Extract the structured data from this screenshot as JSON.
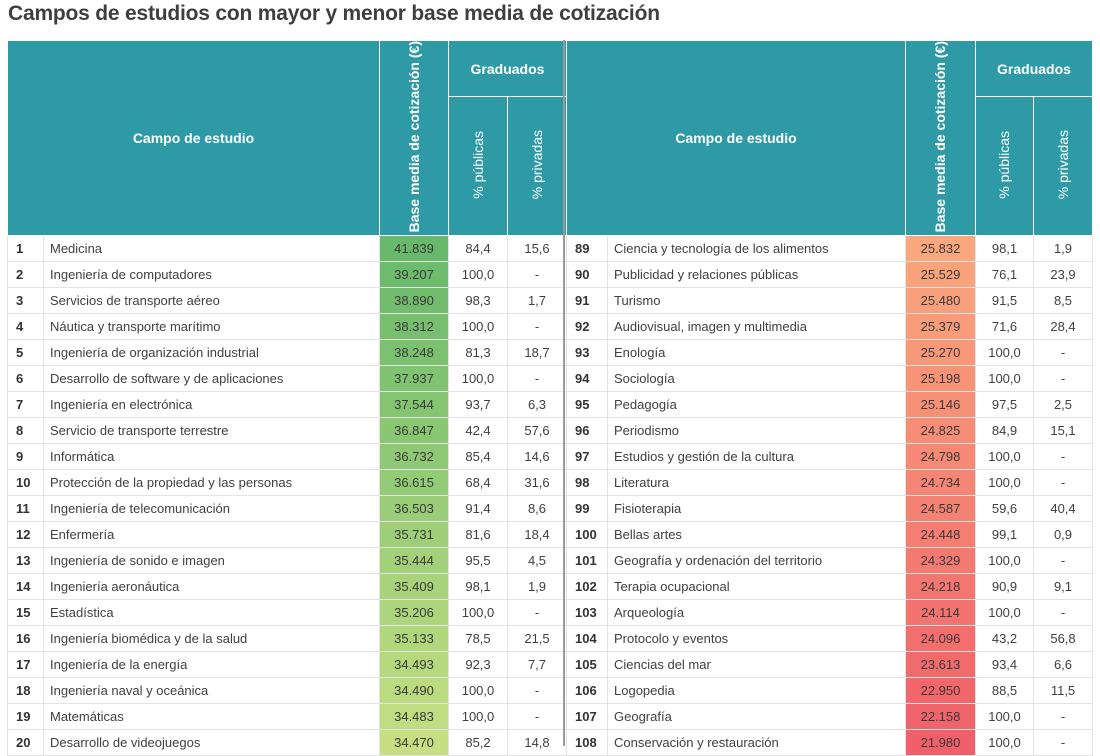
{
  "title": "Campos de estudios con mayor y menor base media de cotización",
  "headers": {
    "campo": "Campo de estudio",
    "base": "Base media de cotización (€)",
    "graduados": "Graduados",
    "publicas": "% públicas",
    "privadas": "% privadas"
  },
  "colors": {
    "header_bg": "#2e9aa6",
    "left_gradient": [
      "#68b96b",
      "#c5df82"
    ],
    "right_gradient": [
      "#f9a77d",
      "#f0606a"
    ]
  },
  "left_rows": [
    {
      "rank": "1",
      "campo": "Medicina",
      "base": "41.839",
      "publicas": "84,4",
      "privadas": "15,6"
    },
    {
      "rank": "2",
      "campo": "Ingeniería de computadores",
      "base": "39.207",
      "publicas": "100,0",
      "privadas": "-"
    },
    {
      "rank": "3",
      "campo": "Servicios de transporte aéreo",
      "base": "38.890",
      "publicas": "98,3",
      "privadas": "1,7"
    },
    {
      "rank": "4",
      "campo": "Náutica y transporte marítimo",
      "base": "38.312",
      "publicas": "100,0",
      "privadas": "-"
    },
    {
      "rank": "5",
      "campo": "Ingeniería de organización industrial",
      "base": "38.248",
      "publicas": "81,3",
      "privadas": "18,7"
    },
    {
      "rank": "6",
      "campo": "Desarrollo de software y de aplicaciones",
      "base": "37.937",
      "publicas": "100,0",
      "privadas": "-"
    },
    {
      "rank": "7",
      "campo": "Ingeniería en electrónica",
      "base": "37.544",
      "publicas": "93,7",
      "privadas": "6,3"
    },
    {
      "rank": "8",
      "campo": "Servicio de transporte terrestre",
      "base": "36.847",
      "publicas": "42,4",
      "privadas": "57,6"
    },
    {
      "rank": "9",
      "campo": "Informática",
      "base": "36.732",
      "publicas": "85,4",
      "privadas": "14,6"
    },
    {
      "rank": "10",
      "campo": "Protección de la propiedad y las personas",
      "base": "36.615",
      "publicas": "68,4",
      "privadas": "31,6"
    },
    {
      "rank": "11",
      "campo": "Ingeniería de telecomunicación",
      "base": "36.503",
      "publicas": "91,4",
      "privadas": "8,6"
    },
    {
      "rank": "12",
      "campo": "Enfermería",
      "base": "35.731",
      "publicas": "81,6",
      "privadas": "18,4"
    },
    {
      "rank": "13",
      "campo": "Ingeniería de sonido e imagen",
      "base": "35.444",
      "publicas": "95,5",
      "privadas": "4,5"
    },
    {
      "rank": "14",
      "campo": "Ingeniería aeronáutica",
      "base": "35.409",
      "publicas": "98,1",
      "privadas": "1,9"
    },
    {
      "rank": "15",
      "campo": "Estadística",
      "base": "35.206",
      "publicas": "100,0",
      "privadas": "-"
    },
    {
      "rank": "16",
      "campo": "Ingeniería biomédica y de la salud",
      "base": "35.133",
      "publicas": "78,5",
      "privadas": "21,5"
    },
    {
      "rank": "17",
      "campo": "Ingeniería de la energía",
      "base": "34.493",
      "publicas": "92,3",
      "privadas": "7,7"
    },
    {
      "rank": "18",
      "campo": "Ingeniería naval y oceánica",
      "base": "34.490",
      "publicas": "100,0",
      "privadas": "-"
    },
    {
      "rank": "19",
      "campo": "Matemáticas",
      "base": "34.483",
      "publicas": "100,0",
      "privadas": "-"
    },
    {
      "rank": "20",
      "campo": "Desarrollo de videojuegos",
      "base": "34.470",
      "publicas": "85,2",
      "privadas": "14,8"
    }
  ],
  "right_rows": [
    {
      "rank": "89",
      "campo": "Ciencia y tecnología de los alimentos",
      "base": "25.832",
      "publicas": "98,1",
      "privadas": "1,9"
    },
    {
      "rank": "90",
      "campo": "Publicidad y relaciones públicas",
      "base": "25.529",
      "publicas": "76,1",
      "privadas": "23,9"
    },
    {
      "rank": "91",
      "campo": "Turismo",
      "base": "25.480",
      "publicas": "91,5",
      "privadas": "8,5"
    },
    {
      "rank": "92",
      "campo": "Audiovisual, imagen y multimedia",
      "base": "25.379",
      "publicas": "71,6",
      "privadas": "28,4"
    },
    {
      "rank": "93",
      "campo": "Enología",
      "base": "25.270",
      "publicas": "100,0",
      "privadas": "-"
    },
    {
      "rank": "94",
      "campo": "Sociología",
      "base": "25.198",
      "publicas": "100,0",
      "privadas": "-"
    },
    {
      "rank": "95",
      "campo": "Pedagogía",
      "base": "25.146",
      "publicas": "97,5",
      "privadas": "2,5"
    },
    {
      "rank": "96",
      "campo": "Periodismo",
      "base": "24.825",
      "publicas": "84,9",
      "privadas": "15,1"
    },
    {
      "rank": "97",
      "campo": "Estudios y gestión de la cultura",
      "base": "24.798",
      "publicas": "100,0",
      "privadas": "-"
    },
    {
      "rank": "98",
      "campo": "Literatura",
      "base": "24.734",
      "publicas": "100,0",
      "privadas": "-"
    },
    {
      "rank": "99",
      "campo": "Fisioterapia",
      "base": "24.587",
      "publicas": "59,6",
      "privadas": "40,4"
    },
    {
      "rank": "100",
      "campo": "Bellas artes",
      "base": "24.448",
      "publicas": "99,1",
      "privadas": "0,9"
    },
    {
      "rank": "101",
      "campo": "Geografía y ordenación del territorio",
      "base": "24.329",
      "publicas": "100,0",
      "privadas": "-"
    },
    {
      "rank": "102",
      "campo": "Terapia ocupacional",
      "base": "24.218",
      "publicas": "90,9",
      "privadas": "9,1"
    },
    {
      "rank": "103",
      "campo": "Arqueología",
      "base": "24.114",
      "publicas": "100,0",
      "privadas": "-"
    },
    {
      "rank": "104",
      "campo": "Protocolo y eventos",
      "base": "24.096",
      "publicas": "43,2",
      "privadas": "56,8"
    },
    {
      "rank": "105",
      "campo": "Ciencias del mar",
      "base": "23.613",
      "publicas": "93,4",
      "privadas": "6,6"
    },
    {
      "rank": "106",
      "campo": "Logopedia",
      "base": "22.950",
      "publicas": "88,5",
      "privadas": "11,5"
    },
    {
      "rank": "107",
      "campo": "Geografía",
      "base": "22.158",
      "publicas": "100,0",
      "privadas": "-"
    },
    {
      "rank": "108",
      "campo": "Conservación y restauración",
      "base": "21.980",
      "publicas": "100,0",
      "privadas": "-"
    }
  ]
}
